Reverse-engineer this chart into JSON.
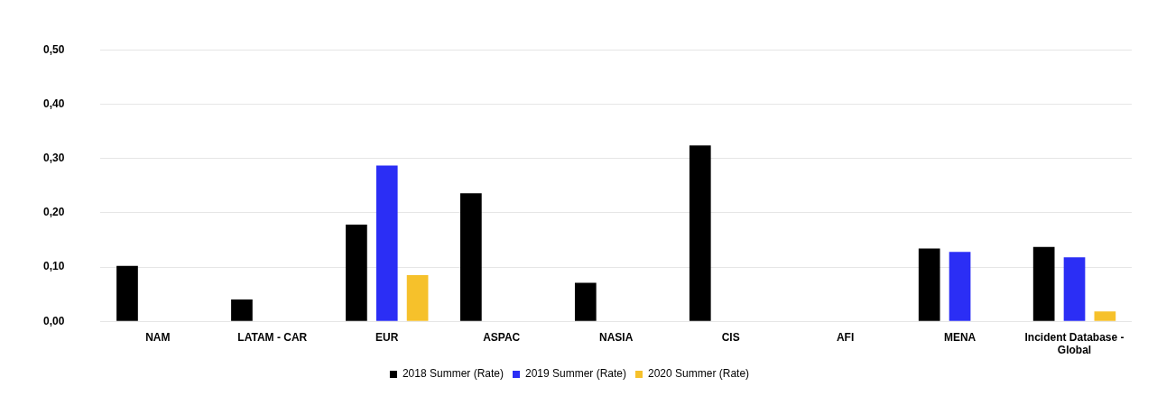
{
  "chart_data": {
    "type": "bar",
    "categories": [
      "NAM",
      "LATAM - CAR",
      "EUR",
      "ASPAC",
      "NASIA",
      "CIS",
      "AFI",
      "MENA",
      "Incident Database - Global"
    ],
    "series": [
      {
        "name": "2018 Summer (Rate)",
        "color": "#000000",
        "values": [
          0.102,
          0.04,
          0.178,
          0.236,
          0.071,
          0.324,
          0,
          0.134,
          0.137
        ]
      },
      {
        "name": "2019 Summer (Rate)",
        "color": "#2b2ef5",
        "values": [
          0,
          0,
          0.287,
          0,
          0,
          0,
          0,
          0.128,
          0.118
        ]
      },
      {
        "name": "2020 Summer (Rate)",
        "color": "#f6c12b",
        "values": [
          0,
          0,
          0.085,
          0,
          0,
          0,
          0,
          0,
          0.018
        ]
      }
    ],
    "ylim": [
      0,
      0.5
    ],
    "yticks": [
      {
        "value": 0,
        "label": "0,00"
      },
      {
        "value": 0.1,
        "label": "0,10"
      },
      {
        "value": 0.2,
        "label": "0,20"
      },
      {
        "value": 0.3,
        "label": "0,30"
      },
      {
        "value": 0.4,
        "label": "0,40"
      },
      {
        "value": 0.5,
        "label": "0,50"
      }
    ],
    "grid": "y",
    "legend": "bottom"
  }
}
